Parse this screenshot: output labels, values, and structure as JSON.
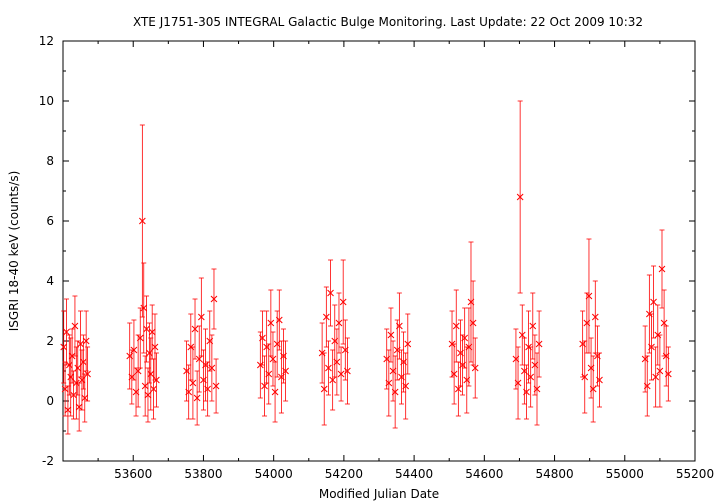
{
  "chart_data": {
    "type": "scatter",
    "title": "XTE J1751-305   INTEGRAL Galactic Bulge Monitoring.  Last Update: 22 Oct 2009 10:32",
    "xlabel": "Modified Julian Date",
    "ylabel": "ISGRI 18-40 keV (counts/s)",
    "xlim": [
      53400,
      55200
    ],
    "ylim": [
      -2,
      12
    ],
    "xticks": [
      53600,
      53800,
      54000,
      54200,
      54400,
      54600,
      54800,
      55000,
      55200
    ],
    "yticks": [
      -2,
      0,
      2,
      4,
      6,
      8,
      10,
      12
    ],
    "grid": false,
    "marker": "x",
    "error_bars": true,
    "colors": {
      "data": "#ff0000",
      "axes": "#000000",
      "background": "#ffffff"
    },
    "series": [
      {
        "x": [
          53402,
          53406,
          53410,
          53414,
          53418,
          53422,
          53426,
          53430,
          53434,
          53438,
          53442,
          53446,
          53450,
          53454,
          53458,
          53462,
          53466,
          53470
        ],
        "y": [
          1.8,
          0.4,
          2.3,
          -0.3,
          1.2,
          0.8,
          1.5,
          0.2,
          2.5,
          0.6,
          1.1,
          -0.2,
          1.9,
          0.7,
          1.3,
          0.1,
          2.0,
          0.9
        ],
        "err": [
          1.2,
          0.9,
          1.1,
          0.8,
          1.0,
          1.3,
          0.9,
          0.8,
          1.0,
          1.2,
          0.9,
          0.8,
          1.1,
          1.0,
          0.9,
          0.8,
          1.0,
          0.9
        ]
      },
      {
        "x": [
          53590,
          53596,
          53602,
          53608,
          53614,
          53620,
          53626,
          53630,
          53634,
          53638,
          53642,
          53646,
          53650,
          53654,
          53658,
          53662,
          53666
        ],
        "y": [
          1.5,
          0.8,
          1.7,
          0.3,
          1.0,
          2.1,
          6.0,
          3.1,
          0.5,
          2.4,
          0.2,
          1.6,
          0.9,
          2.3,
          0.4,
          1.8,
          0.7
        ],
        "err": [
          1.1,
          0.9,
          1.0,
          0.8,
          1.2,
          1.0,
          3.2,
          1.5,
          1.0,
          1.1,
          0.9,
          1.0,
          1.2,
          0.9,
          1.0,
          1.1,
          0.9
        ]
      },
      {
        "x": [
          53752,
          53758,
          53764,
          53770,
          53776,
          53782,
          53788,
          53794,
          53800,
          53806,
          53812,
          53818,
          53824,
          53830,
          53836
        ],
        "y": [
          1.0,
          0.3,
          1.8,
          0.6,
          2.4,
          0.1,
          1.4,
          2.8,
          0.7,
          1.2,
          0.4,
          2.0,
          1.1,
          3.4,
          0.5
        ],
        "err": [
          1.0,
          0.9,
          1.1,
          1.2,
          1.0,
          0.9,
          1.1,
          1.3,
          1.0,
          1.2,
          0.9,
          1.0,
          1.1,
          1.0,
          0.9
        ]
      },
      {
        "x": [
          53962,
          53968,
          53974,
          53980,
          53986,
          53992,
          53998,
          54004,
          54010,
          54016,
          54022,
          54028,
          54034
        ],
        "y": [
          1.2,
          2.1,
          0.5,
          1.8,
          0.9,
          2.6,
          1.4,
          0.3,
          1.9,
          2.7,
          0.8,
          1.5,
          1.0
        ],
        "err": [
          1.1,
          0.9,
          1.0,
          1.2,
          1.0,
          1.1,
          0.9,
          1.0,
          1.1,
          1.0,
          1.2,
          0.9,
          1.0
        ]
      },
      {
        "x": [
          54138,
          54144,
          54150,
          54156,
          54162,
          54168,
          54174,
          54180,
          54186,
          54192,
          54198,
          54204,
          54210
        ],
        "y": [
          1.6,
          0.4,
          2.8,
          1.1,
          3.6,
          0.7,
          2.0,
          1.3,
          2.6,
          0.9,
          3.3,
          1.7,
          1.0
        ],
        "err": [
          1.0,
          1.2,
          1.0,
          0.9,
          1.1,
          1.0,
          1.2,
          1.1,
          1.0,
          0.9,
          1.4,
          1.0,
          1.1
        ]
      },
      {
        "x": [
          54322,
          54328,
          54334,
          54340,
          54346,
          54352,
          54358,
          54364,
          54370,
          54376,
          54382
        ],
        "y": [
          1.4,
          0.6,
          2.2,
          1.0,
          0.3,
          1.7,
          2.5,
          0.8,
          1.3,
          0.5,
          1.9
        ],
        "err": [
          1.0,
          1.1,
          0.9,
          1.0,
          1.2,
          1.0,
          1.1,
          0.9,
          1.0,
          1.1,
          1.0
        ]
      },
      {
        "x": [
          54508,
          54514,
          54520,
          54526,
          54532,
          54538,
          54544,
          54550,
          54556,
          54562,
          54568,
          54574
        ],
        "y": [
          1.9,
          0.9,
          2.5,
          0.4,
          1.6,
          1.2,
          2.1,
          0.7,
          1.8,
          3.3,
          2.6,
          1.1
        ],
        "err": [
          1.1,
          1.0,
          1.2,
          0.9,
          1.1,
          1.0,
          1.0,
          1.1,
          1.3,
          2.0,
          1.4,
          1.0
        ]
      },
      {
        "x": [
          54690,
          54696,
          54702,
          54708,
          54714,
          54720,
          54726,
          54732,
          54738,
          54744,
          54750,
          54756
        ],
        "y": [
          1.4,
          0.6,
          6.8,
          2.2,
          1.0,
          0.3,
          1.8,
          0.8,
          2.5,
          1.2,
          0.4,
          1.9
        ],
        "err": [
          1.0,
          1.2,
          3.2,
          1.0,
          1.1,
          0.9,
          1.2,
          1.0,
          1.1,
          1.0,
          1.2,
          1.1
        ]
      },
      {
        "x": [
          54880,
          54886,
          54892,
          54898,
          54904,
          54910,
          54916,
          54922,
          54928
        ],
        "y": [
          1.9,
          0.8,
          2.6,
          3.5,
          1.1,
          0.4,
          2.8,
          1.5,
          0.7
        ],
        "err": [
          1.1,
          1.2,
          1.0,
          1.9,
          1.0,
          1.1,
          1.2,
          1.0,
          0.9
        ]
      },
      {
        "x": [
          55058,
          55064,
          55070,
          55076,
          55082,
          55088,
          55094,
          55100,
          55106,
          55112,
          55118,
          55124
        ],
        "y": [
          1.4,
          0.5,
          2.9,
          1.8,
          3.3,
          0.8,
          2.2,
          1.0,
          4.4,
          2.6,
          1.5,
          0.9
        ],
        "err": [
          1.1,
          1.0,
          1.3,
          1.1,
          1.2,
          1.0,
          1.0,
          1.2,
          1.3,
          1.1,
          1.0,
          0.9
        ]
      }
    ]
  }
}
